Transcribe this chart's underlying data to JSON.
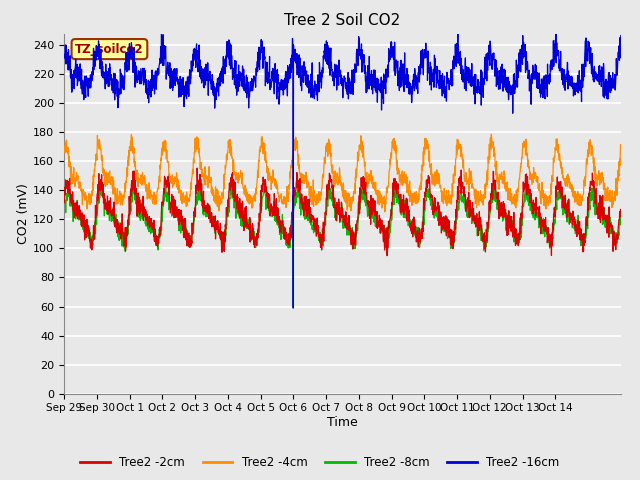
{
  "title": "Tree 2 Soil CO2",
  "xlabel": "Time",
  "ylabel": "CO2 (mV)",
  "annotation": "TZ_soilco2",
  "ylim": [
    0,
    248
  ],
  "yticks": [
    0,
    20,
    40,
    60,
    80,
    100,
    120,
    140,
    160,
    180,
    200,
    220,
    240
  ],
  "fig_bg_color": "#e8e8e8",
  "plot_bg_color": "#e8e8e8",
  "n_points": 2000,
  "x_start_day": 29.0,
  "x_end_day": 46.0,
  "xtick_days": [
    29,
    30,
    31,
    32,
    33,
    34,
    35,
    36,
    37,
    38,
    39,
    40,
    41,
    42,
    43,
    44,
    45,
    46
  ],
  "xtick_labels": [
    "Sep 29",
    "Sep 30",
    "Oct 1",
    "Oct 2",
    "Oct 3",
    "Oct 4",
    "Oct 5",
    "Oct 6",
    "Oct 7",
    "Oct 8",
    "Oct 9",
    "Oct 10",
    "Oct 11",
    "Oct 12",
    "Oct 13",
    "Oct 14",
    "",
    ""
  ],
  "spike_day": 36.0,
  "green_spike_val": 59,
  "blue_spike_val": 59,
  "legend_labels": [
    "Tree2 -2cm",
    "Tree2 -4cm",
    "Tree2 -8cm",
    "Tree2 -16cm"
  ],
  "legend_colors": [
    "#dd0000",
    "#ff8c00",
    "#00bb00",
    "#0000dd"
  ],
  "line_width": 0.9
}
